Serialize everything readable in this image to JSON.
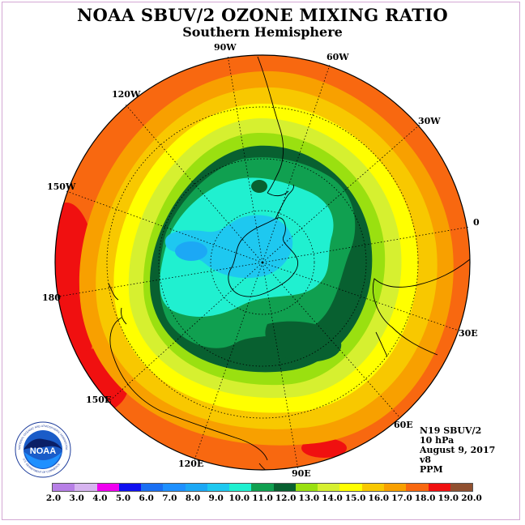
{
  "title": "NOAA SBUV/2 OZONE MIXING RATIO",
  "subtitle": "Southern Hemisphere",
  "longitude_labels": {
    "lon_90w": "90W",
    "lon_60w": "60W",
    "lon_120w": "120W",
    "lon_30w": "30W",
    "lon_150w": "150W",
    "lon_0": "0",
    "lon_180": "180",
    "lon_30e": "30E",
    "lon_150e": "150E",
    "lon_60e": "60E",
    "lon_120e": "120E",
    "lon_90e": "90E"
  },
  "info": {
    "instrument": "N19 SBUV/2",
    "level": "10 hPa",
    "date": "August 9, 2017",
    "version": "v8",
    "units": "PPM"
  },
  "colorbar": {
    "labels": [
      "2.0",
      "3.0",
      "4.0",
      "5.0",
      "6.0",
      "7.0",
      "8.0",
      "9.0",
      "10.0",
      "11.0",
      "12.0",
      "13.0",
      "14.0",
      "15.0",
      "16.0",
      "17.0",
      "18.0",
      "19.0",
      "20.0"
    ],
    "colors": [
      "#b77fe6",
      "#d7b4f0",
      "#f000f0",
      "#1010f0",
      "#1a6ff2",
      "#1e90ff",
      "#1ca8f5",
      "#1ec8f0",
      "#20f0d0",
      "#10a050",
      "#086030",
      "#9ae010",
      "#d6f030",
      "#ffff00",
      "#f8c800",
      "#f8a000",
      "#f86810",
      "#f01010",
      "#905030"
    ]
  },
  "logo": {
    "text": "NOAA",
    "ring_text": "NATIONAL OCEANIC AND ATMOSPHERIC ADMINISTRATION",
    "ring_text_bottom": "U.S. DEPARTMENT OF COMMERCE"
  }
}
